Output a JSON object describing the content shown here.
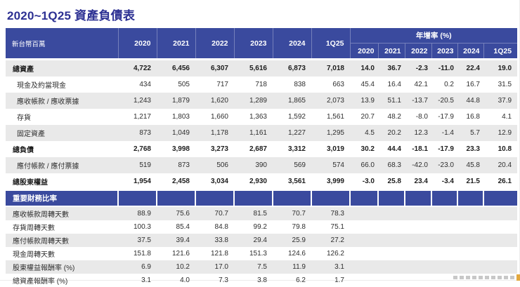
{
  "title": "2020~1Q25 資產負債表",
  "colors": {
    "title_blue": "#2d3193",
    "header_blue": "#3a4a9e",
    "row_gray": "#e9e9e9",
    "logo_fragment_orange": "#e2a83e"
  },
  "table": {
    "unit_label": "新台幣百萬",
    "year_columns": [
      "2020",
      "2021",
      "2022",
      "2023",
      "2024",
      "1Q25"
    ],
    "yoy_header": "年增率 (%)",
    "yoy_columns": [
      "2020",
      "2021",
      "2022",
      "2023",
      "2024",
      "1Q25"
    ],
    "rows": [
      {
        "label": "總資產",
        "bold": true,
        "indent": false,
        "values": [
          "4,722",
          "6,456",
          "6,307",
          "5,616",
          "6,873",
          "7,018"
        ],
        "yoy": [
          "14.0",
          "36.7",
          "-2.3",
          "-11.0",
          "22.4",
          "19.0"
        ]
      },
      {
        "label": "現金及約當現金",
        "bold": false,
        "indent": true,
        "values": [
          "434",
          "505",
          "717",
          "718",
          "838",
          "663"
        ],
        "yoy": [
          "45.4",
          "16.4",
          "42.1",
          "0.2",
          "16.7",
          "31.5"
        ]
      },
      {
        "label": "應收帳款 / 應收票據",
        "bold": false,
        "indent": true,
        "values": [
          "1,243",
          "1,879",
          "1,620",
          "1,289",
          "1,865",
          "2,073"
        ],
        "yoy": [
          "13.9",
          "51.1",
          "-13.7",
          "-20.5",
          "44.8",
          "37.9"
        ]
      },
      {
        "label": "存貨",
        "bold": false,
        "indent": true,
        "values": [
          "1,217",
          "1,803",
          "1,660",
          "1,363",
          "1,592",
          "1,561"
        ],
        "yoy": [
          "20.7",
          "48.2",
          "-8.0",
          "-17.9",
          "16.8",
          "4.1"
        ]
      },
      {
        "label": "固定資產",
        "bold": false,
        "indent": true,
        "values": [
          "873",
          "1,049",
          "1,178",
          "1,161",
          "1,227",
          "1,295"
        ],
        "yoy": [
          "4.5",
          "20.2",
          "12.3",
          "-1.4",
          "5.7",
          "12.9"
        ]
      },
      {
        "label": "總負債",
        "bold": true,
        "indent": false,
        "values": [
          "2,768",
          "3,998",
          "3,273",
          "2,687",
          "3,312",
          "3,019"
        ],
        "yoy": [
          "30.2",
          "44.4",
          "-18.1",
          "-17.9",
          "23.3",
          "10.8"
        ]
      },
      {
        "label": "應付帳款 / 應付票據",
        "bold": false,
        "indent": true,
        "values": [
          "519",
          "873",
          "506",
          "390",
          "569",
          "574"
        ],
        "yoy": [
          "66.0",
          "68.3",
          "-42.0",
          "-23.0",
          "45.8",
          "20.4"
        ]
      },
      {
        "label": "總股東權益",
        "bold": true,
        "indent": false,
        "values": [
          "1,954",
          "2,458",
          "3,034",
          "2,930",
          "3,561",
          "3,999"
        ],
        "yoy": [
          "-3.0",
          "25.8",
          "23.4",
          "-3.4",
          "21.5",
          "26.1"
        ]
      }
    ],
    "section_header": "重要財務比率",
    "ratio_rows": [
      {
        "label": "應收帳款周轉天數",
        "values": [
          "88.9",
          "75.6",
          "70.7",
          "81.5",
          "70.7",
          "78.3"
        ]
      },
      {
        "label": "存貨周轉天數",
        "values": [
          "100.3",
          "85.4",
          "84.8",
          "99.2",
          "79.8",
          "75.1"
        ]
      },
      {
        "label": "應付帳款周轉天數",
        "values": [
          "37.5",
          "39.4",
          "33.8",
          "29.4",
          "25.9",
          "27.2"
        ]
      },
      {
        "label": "現金周轉天數",
        "values": [
          "151.8",
          "121.6",
          "121.8",
          "151.3",
          "124.6",
          "126.2"
        ]
      },
      {
        "label": "股東權益報酬率 (%)",
        "values": [
          "6.9",
          "10.2",
          "17.0",
          "7.5",
          "11.9",
          "3.1"
        ]
      },
      {
        "label": "總資產報酬率 (%)",
        "values": [
          "3.1",
          "4.0",
          "7.3",
          "3.8",
          "6.2",
          "1.7"
        ]
      }
    ]
  }
}
